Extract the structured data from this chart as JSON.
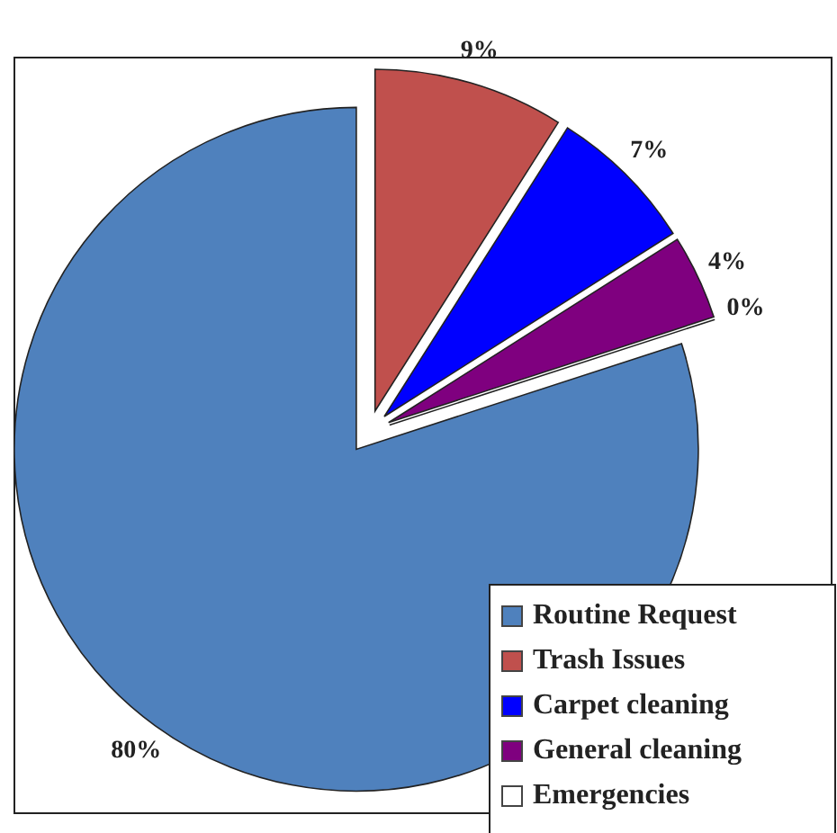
{
  "chart_data": {
    "type": "pie",
    "categories": [
      "Routine Request",
      "Trash Issues",
      "Carpet cleaning",
      "General cleaning",
      "Emergencies"
    ],
    "values": [
      80,
      9,
      7,
      4,
      0
    ],
    "colors": [
      "#4f81bd",
      "#c0504d",
      "#0000ff",
      "#7f007f",
      "#ffffff"
    ],
    "value_labels": [
      "80%",
      "9%",
      "7%",
      "4%",
      "0%"
    ],
    "legend": "bottom right"
  }
}
